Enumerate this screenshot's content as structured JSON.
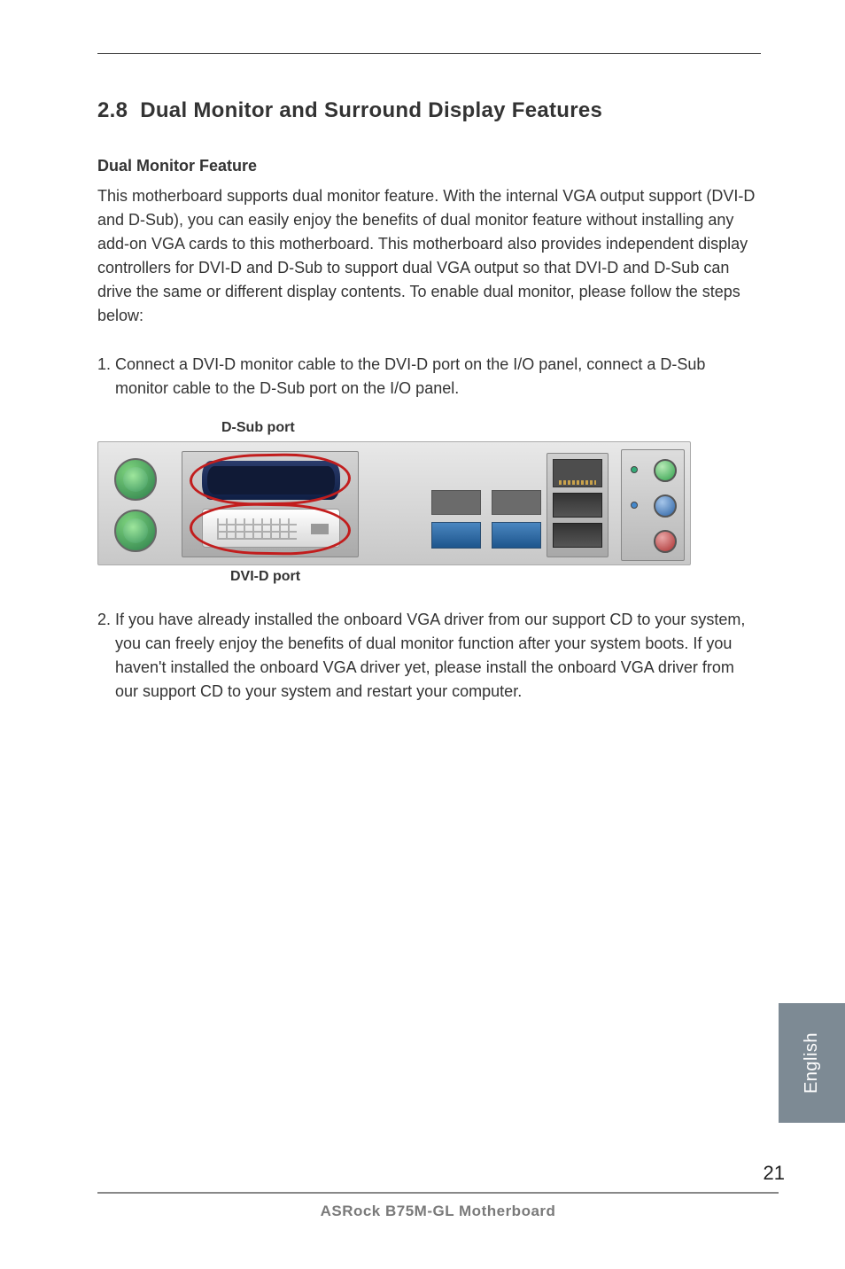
{
  "section": {
    "number": "2.8",
    "title": "Dual Monitor and Surround Display Features"
  },
  "subheading": "Dual Monitor Feature",
  "intro_paragraph": "This motherboard supports dual monitor feature. With the internal VGA output support (DVI-D and D-Sub), you can easily enjoy the benefits of dual monitor feature without installing any add-on VGA cards to this motherboard. This motherboard also provides independent display controllers for DVI-D and D-Sub to support dual VGA output so that DVI-D and D-Sub can drive the same or different display contents. To enable dual monitor, please follow the steps below:",
  "step1": "1. Connect a DVI-D monitor cable to the DVI-D port on the I/O panel, connect a D-Sub monitor cable to the D-Sub port on the I/O panel.",
  "labels": {
    "dsub": "D-Sub port",
    "dvid": "DVI-D port"
  },
  "step2": "2. If you have already installed the onboard VGA driver from our support CD to your system, you can freely enjoy the benefits of dual monitor function after your system boots. If you haven't installed the onboard VGA driver yet, please install the onboard VGA driver from our support CD to your system and restart your computer.",
  "language_tab": "English",
  "footer_text": "ASRock  B75M-GL  Motherboard",
  "page_number": "21",
  "colors": {
    "highlight_ring": "#c21d1d",
    "rule": "#333333",
    "footer_rule": "#888888",
    "footer_text": "#7a7a7a",
    "lang_tab_bg": "#7d8a94",
    "body_text": "#333333"
  },
  "typography": {
    "title_fontsize": 24,
    "body_fontsize": 18,
    "label_fontsize": 16,
    "footer_fontsize": 17,
    "pagenum_fontsize": 22
  }
}
